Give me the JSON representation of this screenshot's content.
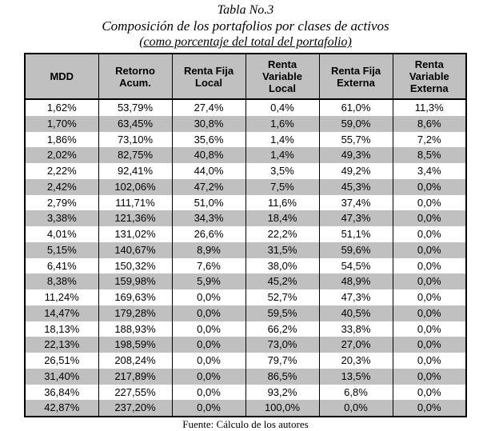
{
  "caption": {
    "line1": "Tabla No.3",
    "line2": "Composición de los portafolios por clases de activos",
    "line3": "(como porcentaje del total del portafolio)"
  },
  "table": {
    "headers": [
      "MDD",
      "Retorno Acum.",
      "Renta Fija Local",
      "Renta Variable Local",
      "Renta Fija Externa",
      "Renta Variable Externa"
    ],
    "rows": [
      [
        "1,62%",
        "53,79%",
        "27,4%",
        "0,4%",
        "61,0%",
        "11,3%"
      ],
      [
        "1,70%",
        "63,45%",
        "30,8%",
        "1,6%",
        "59,0%",
        "8,6%"
      ],
      [
        "1,86%",
        "73,10%",
        "35,6%",
        "1,4%",
        "55,7%",
        "7,2%"
      ],
      [
        "2,02%",
        "82,75%",
        "40,8%",
        "1,4%",
        "49,3%",
        "8,5%"
      ],
      [
        "2,22%",
        "92,41%",
        "44,0%",
        "3,5%",
        "49,2%",
        "3,4%"
      ],
      [
        "2,42%",
        "102,06%",
        "47,2%",
        "7,5%",
        "45,3%",
        "0,0%"
      ],
      [
        "2,79%",
        "111,71%",
        "51,0%",
        "11,6%",
        "37,4%",
        "0,0%"
      ],
      [
        "3,38%",
        "121,36%",
        "34,3%",
        "18,4%",
        "47,3%",
        "0,0%"
      ],
      [
        "4,01%",
        "131,02%",
        "26,6%",
        "22,2%",
        "51,1%",
        "0,0%"
      ],
      [
        "5,15%",
        "140,67%",
        "8,9%",
        "31,5%",
        "59,6%",
        "0,0%"
      ],
      [
        "6,41%",
        "150,32%",
        "7,6%",
        "38,0%",
        "54,5%",
        "0,0%"
      ],
      [
        "8,38%",
        "159,98%",
        "5,9%",
        "45,2%",
        "48,9%",
        "0,0%"
      ],
      [
        "11,24%",
        "169,63%",
        "0,0%",
        "52,7%",
        "47,3%",
        "0,0%"
      ],
      [
        "14,47%",
        "179,28%",
        "0,0%",
        "59,5%",
        "40,5%",
        "0,0%"
      ],
      [
        "18,13%",
        "188,93%",
        "0,0%",
        "66,2%",
        "33,8%",
        "0,0%"
      ],
      [
        "22,13%",
        "198,59%",
        "0,0%",
        "73,0%",
        "27,0%",
        "0,0%"
      ],
      [
        "26,51%",
        "208,24%",
        "0,0%",
        "79,7%",
        "20,3%",
        "0,0%"
      ],
      [
        "31,40%",
        "217,89%",
        "0,0%",
        "86,5%",
        "13,5%",
        "0,0%"
      ],
      [
        "36,84%",
        "227,55%",
        "0,0%",
        "93,2%",
        "6,8%",
        "0,0%"
      ],
      [
        "42,87%",
        "237,20%",
        "0,0%",
        "100,0%",
        "0,0%",
        "0,0%"
      ]
    ],
    "source": "Fuente: Cálculo de los autores"
  },
  "colors": {
    "header_bg": "#c0c0c0",
    "row_alt_bg": "#c0c0c0",
    "row_bg": "#ffffff",
    "border": "#000000",
    "text": "#000000",
    "page_bg": "#ffffff"
  }
}
